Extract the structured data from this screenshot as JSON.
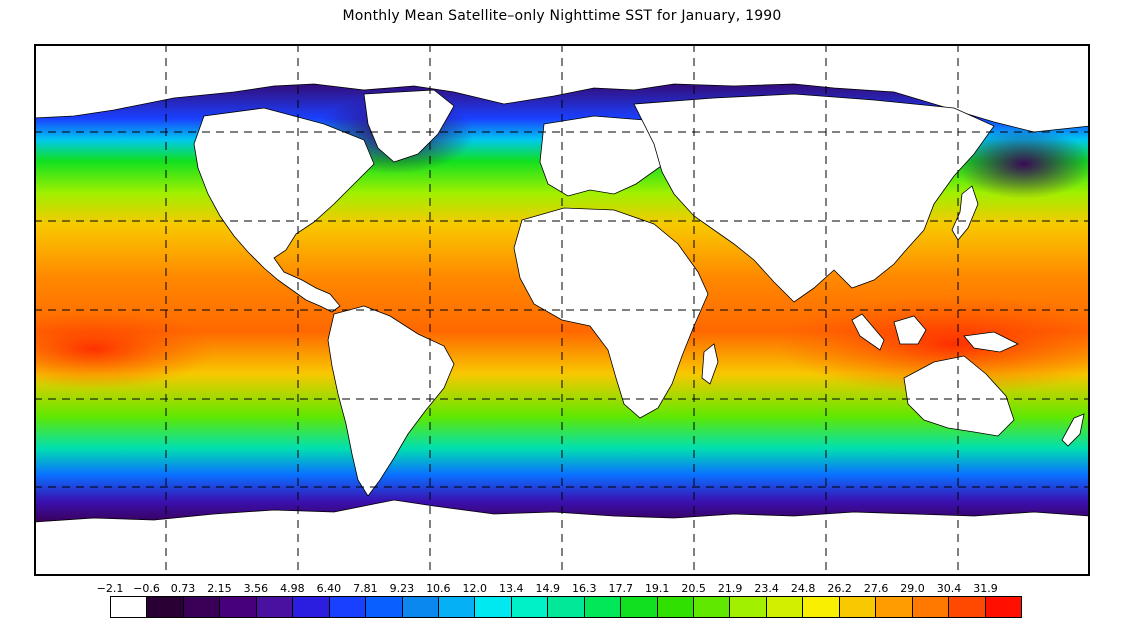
{
  "title": "Monthly Mean Satellite–only Nighttime SST for January, 1990",
  "map": {
    "projection": "equirectangular",
    "gridlines": "dashed",
    "lon_grid_count": 8,
    "lat_grid_count": 6,
    "land_color": "#ffffff",
    "frame_color": "#000000"
  },
  "legend": {
    "ticks": [
      "−2.1",
      "−0.6",
      "0.73",
      "2.15",
      "3.56",
      "4.98",
      "6.40",
      "7.81",
      "9.23",
      "10.6",
      "12.0",
      "13.4",
      "14.9",
      "16.3",
      "17.7",
      "19.1",
      "20.5",
      "21.9",
      "23.4",
      "24.8",
      "26.2",
      "27.6",
      "29.0",
      "30.4",
      "31.9"
    ],
    "colors": [
      "#ffffff",
      "#2a0034",
      "#3a0058",
      "#48007a",
      "#4a10a0",
      "#2c1ee0",
      "#1a40ff",
      "#0a60ff",
      "#0a88f0",
      "#06b0f4",
      "#00e8f0",
      "#00f0c8",
      "#00e898",
      "#00e858",
      "#10e020",
      "#30e000",
      "#60e800",
      "#a0f000",
      "#d0f000",
      "#f8f000",
      "#f8c800",
      "#ff9c00",
      "#ff7800",
      "#ff4800",
      "#ff1000"
    ]
  }
}
